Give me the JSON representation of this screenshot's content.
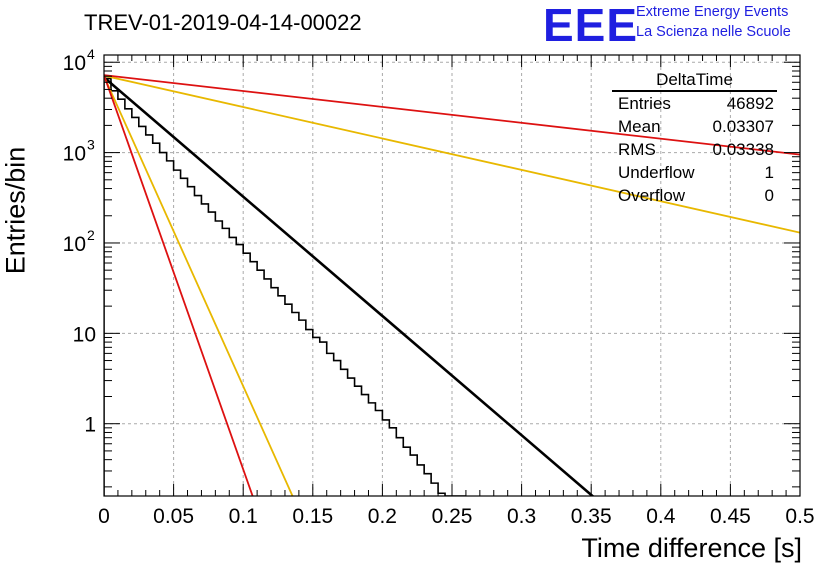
{
  "title": "TREV-01-2019-04-14-00022",
  "logo": {
    "text": "EEE",
    "line1": "Extreme Energy Events",
    "line2": "La Scienza nelle Scuole",
    "color": "#1f1fe0"
  },
  "stats_box": {
    "name": "DeltaTime",
    "rows": [
      {
        "label": "Entries",
        "value": "46892"
      },
      {
        "label": "Mean",
        "value": "0.03307"
      },
      {
        "label": "RMS",
        "value": "0.03338"
      },
      {
        "label": "Underflow",
        "value": "1"
      },
      {
        "label": "Overflow",
        "value": "0"
      }
    ]
  },
  "chart_data": {
    "type": "line",
    "xlabel": "Time difference [s]",
    "ylabel": "Entries/bin",
    "xlim": [
      0,
      0.5
    ],
    "ylim_log10": [
      -0.8,
      4.08
    ],
    "y_scale": "log",
    "grid": true,
    "x_ticks": [
      "0",
      "0.05",
      "0.1",
      "0.15",
      "0.2",
      "0.25",
      "0.3",
      "0.35",
      "0.4",
      "0.45",
      "0.5"
    ],
    "y_ticks": [
      {
        "value": 1,
        "label": "1"
      },
      {
        "value": 10,
        "label": "10"
      },
      {
        "value": 100,
        "label": "10",
        "sup": "2"
      },
      {
        "value": 1000,
        "label": "10",
        "sup": "3"
      },
      {
        "value": 10000,
        "label": "10",
        "sup": "4"
      }
    ],
    "histogram": {
      "bin_width": 0.005,
      "color": "#000000",
      "values": [
        6600,
        4830,
        3900,
        3050,
        2450,
        1950,
        1570,
        1270,
        1000,
        810,
        640,
        520,
        420,
        335,
        270,
        220,
        175,
        145,
        115,
        96,
        77,
        62,
        50,
        40,
        32,
        26,
        21,
        17,
        14,
        11,
        9,
        8,
        6,
        5,
        4,
        3.2,
        2.6,
        2.1,
        1.7,
        1.4,
        1.1,
        0.9,
        0.7,
        0.55,
        0.45,
        0.35,
        0.28,
        0.22,
        0.17,
        0.14,
        0.11,
        0.09
      ]
    },
    "series": [
      {
        "color": "#000000",
        "y0": 6800,
        "y_at_x1": 0.14,
        "x1": 0.355,
        "width": 2.6
      },
      {
        "color": "#e8b800",
        "y0": 7000,
        "y_at_x1": 0.14,
        "x1": 0.137,
        "width": 1.8
      },
      {
        "color": "#dd1111",
        "y0": 7200,
        "y_at_x1": 0.14,
        "x1": 0.108,
        "width": 1.8
      },
      {
        "color": "#e8b800",
        "y0": 7100,
        "y_at_x1": 130,
        "x1": 0.5,
        "width": 1.8
      },
      {
        "color": "#dd1111",
        "y0": 7200,
        "y_at_x1": 950,
        "x1": 0.5,
        "width": 1.8
      }
    ]
  }
}
